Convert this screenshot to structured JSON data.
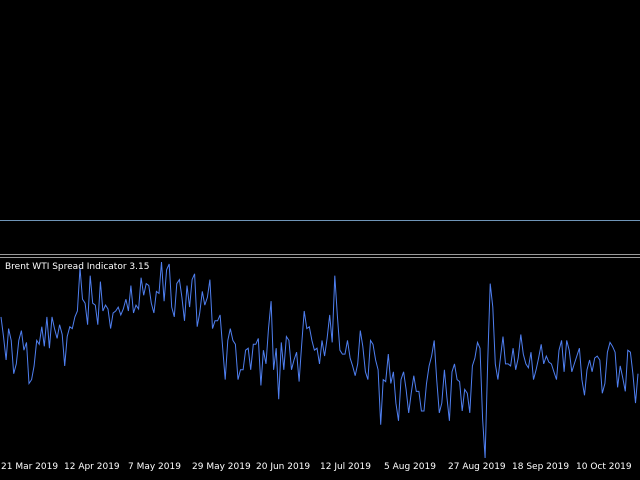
{
  "colors": {
    "background": "#000000",
    "series_line": "#4f7ff0",
    "level_line": "#6f95b8",
    "separator": "#9a9a9a",
    "text": "#ffffff"
  },
  "indicator": {
    "title": "Brent WTI Spread Indicator 3.15"
  },
  "chart_data": {
    "type": "line",
    "title": "Brent WTI Spread Indicator 3.15",
    "x_tick_labels": [
      "21 Mar 2019",
      "12 Apr 2019",
      "7 May 2019",
      "29 May 2019",
      "20 Jun 2019",
      "12 Jul 2019",
      "5 Aug 2019",
      "27 Aug 2019",
      "18 Sep 2019",
      "10 Oct 2019"
    ],
    "ylim": [
      0,
      100
    ],
    "grid": false,
    "series": [
      {
        "values": [
          72,
          62,
          50,
          66,
          60,
          43,
          48,
          60,
          65,
          55,
          59,
          38,
          40,
          47,
          60,
          58,
          67,
          57,
          72,
          56,
          72,
          66,
          61,
          68,
          63,
          47,
          62,
          67,
          66,
          72,
          75,
          97,
          81,
          79,
          68,
          93,
          79,
          78,
          68,
          90,
          75,
          78,
          76,
          66,
          74,
          75,
          77,
          73,
          76,
          81,
          75,
          88,
          74,
          78,
          76,
          92,
          83,
          89,
          88,
          79,
          74,
          85,
          84,
          100,
          80,
          96,
          99,
          77,
          72,
          89,
          91,
          82,
          70,
          88,
          77,
          91,
          94,
          67,
          74,
          85,
          78,
          82,
          91,
          66,
          70,
          70,
          73,
          56,
          40,
          60,
          66,
          60,
          58,
          40,
          45,
          45,
          55,
          56,
          45,
          58,
          58,
          61,
          37,
          55,
          48,
          66,
          80,
          45,
          56,
          30,
          59,
          45,
          62,
          60,
          45,
          50,
          54,
          39,
          58,
          75,
          66,
          67,
          60,
          55,
          56,
          48,
          60,
          52,
          61,
          73,
          59,
          93,
          73,
          55,
          53,
          53,
          60,
          51,
          47,
          42,
          48,
          65,
          57,
          44,
          40,
          60,
          58,
          50,
          45,
          17,
          40,
          39,
          53,
          38,
          44,
          28,
          19,
          40,
          44,
          35,
          23,
          33,
          42,
          34,
          34,
          24,
          24,
          38,
          47,
          52,
          60,
          40,
          23,
          28,
          45,
          31,
          19,
          44,
          48,
          40,
          39,
          24,
          35,
          33,
          23,
          47,
          51,
          59,
          56,
          20,
          0,
          49,
          89,
          77,
          48,
          40,
          51,
          62,
          48,
          48,
          47,
          56,
          45,
          51,
          63,
          53,
          48,
          46,
          54,
          40,
          45,
          51,
          58,
          48,
          52,
          49,
          48,
          44,
          40,
          55,
          60,
          44,
          60,
          55,
          44,
          48,
          52,
          56,
          40,
          32,
          45,
          50,
          44,
          51,
          52,
          50,
          33,
          38,
          54,
          59,
          57,
          54,
          36,
          47,
          41,
          34,
          55,
          54,
          43,
          28,
          43
        ]
      }
    ]
  }
}
